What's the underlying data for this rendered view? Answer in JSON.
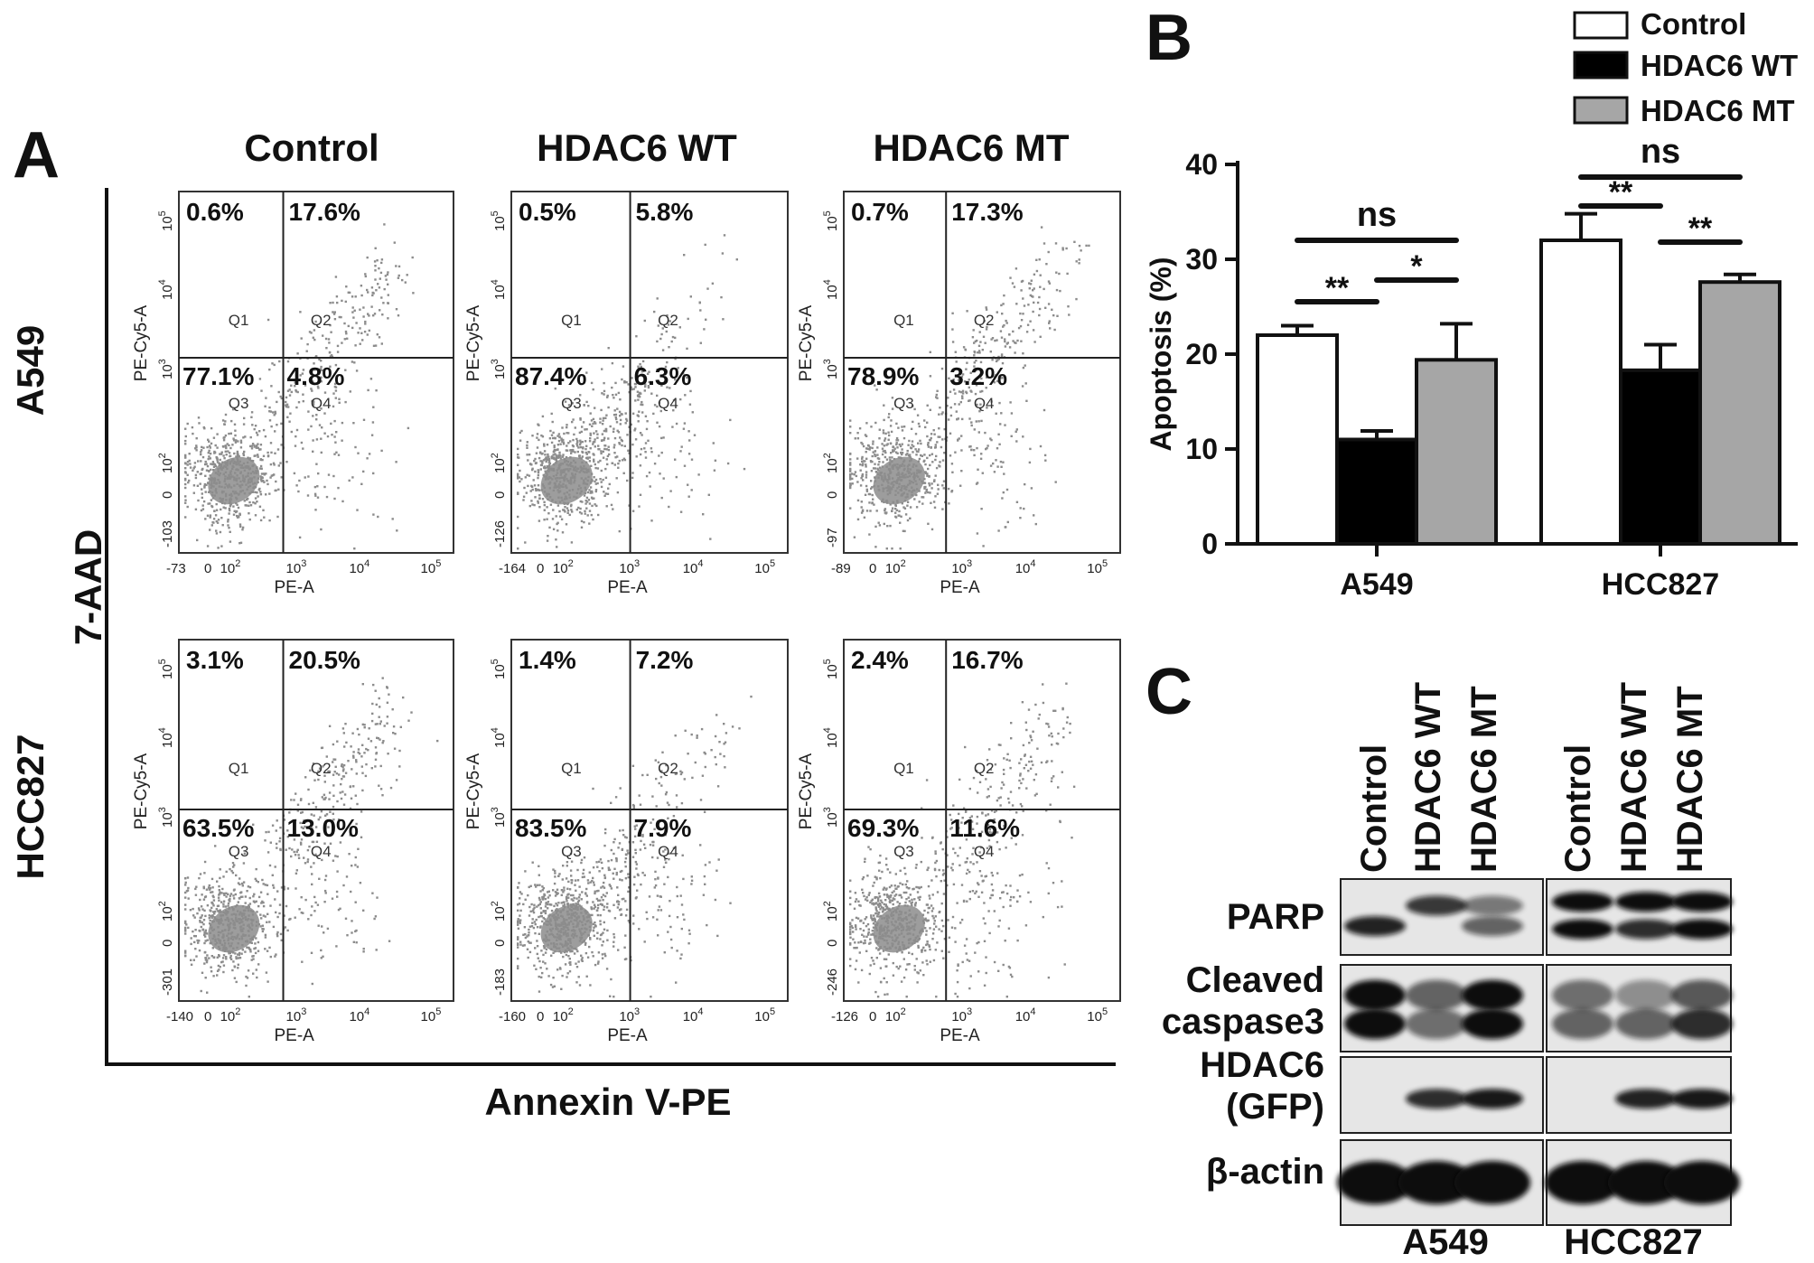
{
  "panel_a": {
    "letter": "A",
    "column_headers": [
      "Control",
      "HDAC6 WT",
      "HDAC6 MT"
    ],
    "row_labels": [
      "A549",
      "HCC827"
    ],
    "y_axis_title": "7-AAD",
    "x_axis_title": "Annexin V-PE",
    "plot_x_label": "PE-A",
    "plot_y_label": "PE-Cy5-A",
    "quadrant_names": [
      "Q1",
      "Q2",
      "Q3",
      "Q4"
    ],
    "plots": [
      {
        "row": "A549",
        "col": "Control",
        "Q1": "0.6%",
        "Q2": "17.6%",
        "Q3": "77.1%",
        "Q4": "4.8%",
        "x_min_tick": "-73",
        "y_min_tick": "-103"
      },
      {
        "row": "A549",
        "col": "HDAC6 WT",
        "Q1": "0.5%",
        "Q2": "5.8%",
        "Q3": "87.4%",
        "Q4": "6.3%",
        "x_min_tick": "-164",
        "y_min_tick": "-126"
      },
      {
        "row": "A549",
        "col": "HDAC6 MT",
        "Q1": "0.7%",
        "Q2": "17.3%",
        "Q3": "78.9%",
        "Q4": "3.2%",
        "x_min_tick": "-89",
        "y_min_tick": "-97"
      },
      {
        "row": "HCC827",
        "col": "Control",
        "Q1": "3.1%",
        "Q2": "20.5%",
        "Q3": "63.5%",
        "Q4": "13.0%",
        "x_min_tick": "-140",
        "y_min_tick": "-301"
      },
      {
        "row": "HCC827",
        "col": "HDAC6 WT",
        "Q1": "1.4%",
        "Q2": "7.2%",
        "Q3": "83.5%",
        "Q4": "7.9%",
        "x_min_tick": "-160",
        "y_min_tick": "-183"
      },
      {
        "row": "HCC827",
        "col": "HDAC6 MT",
        "Q1": "2.4%",
        "Q2": "16.7%",
        "Q3": "69.3%",
        "Q4": "11.6%",
        "x_min_tick": "-126",
        "y_min_tick": "-246"
      }
    ],
    "tick_labels": {
      "zero": "0",
      "t2": "10",
      "e2": "2",
      "t3": "10",
      "e3": "3",
      "t4": "10",
      "e4": "4",
      "t5": "10",
      "e5": "5"
    }
  },
  "chart_data": {
    "type": "bar",
    "panel_letter": "B",
    "categories": [
      "A549",
      "HCC827"
    ],
    "series": [
      {
        "name": "Control",
        "values": [
          22.0,
          32.0
        ],
        "errors": [
          1.0,
          2.8
        ],
        "color": "#ffffff"
      },
      {
        "name": "HDAC6 WT",
        "values": [
          11.0,
          18.3
        ],
        "errors": [
          0.9,
          2.7
        ],
        "color": "#000000"
      },
      {
        "name": "HDAC6 MT",
        "values": [
          19.4,
          27.6
        ],
        "errors": [
          3.8,
          0.8
        ],
        "color": "#a6a6a6"
      }
    ],
    "ylabel": "Apoptosis (%)",
    "ylim": [
      0,
      40
    ],
    "yticks": [
      0,
      10,
      20,
      30,
      40
    ],
    "grid": false,
    "legend_position": "top-right",
    "significance": [
      {
        "category": "A549",
        "from": "Control",
        "to": "HDAC6 WT",
        "label": "**"
      },
      {
        "category": "A549",
        "from": "HDAC6 WT",
        "to": "HDAC6 MT",
        "label": "*"
      },
      {
        "category": "A549",
        "from": "Control",
        "to": "HDAC6 MT",
        "label": "ns"
      },
      {
        "category": "HCC827",
        "from": "Control",
        "to": "HDAC6 WT",
        "label": "**"
      },
      {
        "category": "HCC827",
        "from": "HDAC6 WT",
        "to": "HDAC6 MT",
        "label": "**"
      },
      {
        "category": "HCC827",
        "from": "Control",
        "to": "HDAC6 MT",
        "label": "ns"
      }
    ]
  },
  "panel_c": {
    "letter": "C",
    "lane_labels": [
      "Control",
      "HDAC6 WT",
      "HDAC6 MT"
    ],
    "blot_labels": [
      "PARP",
      "Cleaved",
      "caspase3",
      "HDAC6",
      "(GFP)",
      "β-actin"
    ],
    "cell_lines": [
      "A549",
      "HCC827"
    ]
  }
}
